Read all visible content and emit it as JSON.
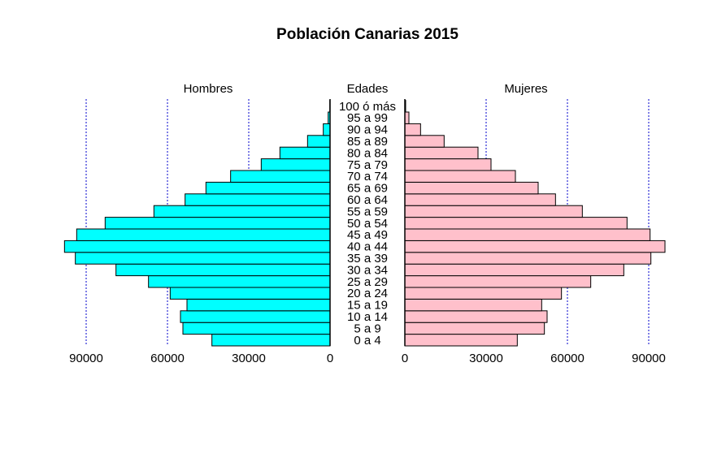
{
  "chart_data": {
    "type": "bar",
    "orientation": "horizontal-pyramid",
    "title": "Población Canarias 2015",
    "center_label": "Edades",
    "categories": [
      "0 a 4",
      "5 a 9",
      "10 a 14",
      "15 a 19",
      "20 a 24",
      "25 a 29",
      "30 a 34",
      "35 a 39",
      "40 a 44",
      "45 a 49",
      "50 a 54",
      "55 a 59",
      "60 a 64",
      "65 a 69",
      "70 a 74",
      "75 a 79",
      "80 a 84",
      "85 a 89",
      "90 a 94",
      "95 a 99",
      "100 ó más"
    ],
    "series": [
      {
        "name": "Hombres",
        "color": "#00FFFF",
        "values": [
          43600,
          54300,
          55200,
          52800,
          59000,
          67000,
          79000,
          94000,
          98000,
          93500,
          83000,
          65000,
          53500,
          45800,
          36700,
          25400,
          18500,
          8300,
          2500,
          700,
          100
        ]
      },
      {
        "name": "Mujeres",
        "color": "#FFC0CB",
        "values": [
          41500,
          51500,
          52500,
          50500,
          57800,
          68600,
          80800,
          90800,
          96000,
          90500,
          82000,
          65500,
          55600,
          49200,
          40800,
          31800,
          27000,
          14500,
          5800,
          1500,
          300
        ]
      }
    ],
    "xticks": [
      "90000",
      "60000",
      "30000",
      "0"
    ],
    "xticks_right": [
      "0",
      "30000",
      "60000",
      "90000"
    ],
    "xlim": [
      0,
      100000
    ],
    "grid": "dotted vertical lines at 30000, 60000, 90000",
    "gridline_color": "#0000CC"
  }
}
